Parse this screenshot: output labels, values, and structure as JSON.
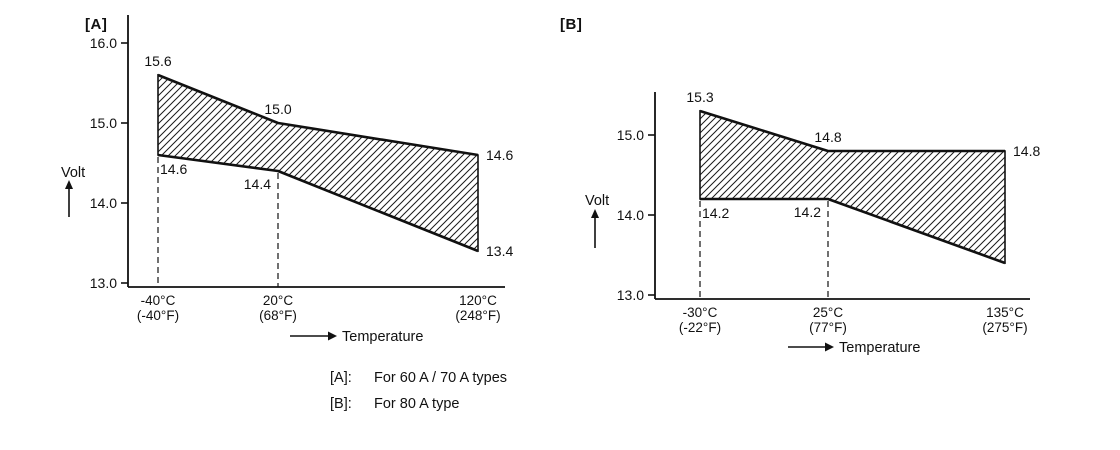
{
  "figure": {
    "legend": [
      {
        "key": "[A]:",
        "text": "For 60 A / 70 A types"
      },
      {
        "key": "[B]:",
        "text": "For 80 A type"
      }
    ]
  },
  "chart_data": [
    {
      "id": "A",
      "panel_label": "[A]",
      "type": "area",
      "ylabel": "Volt",
      "xlabel": "Temperature",
      "grid": false,
      "ylim": [
        13.0,
        16.0
      ],
      "y_ticks": [
        13.0,
        14.0,
        15.0,
        16.0
      ],
      "x_ticks": [
        {
          "c": "-40°C",
          "f": "(-40°F)"
        },
        {
          "c": "20°C",
          "f": "(68°F)"
        },
        {
          "c": "120°C",
          "f": "(248°F)"
        }
      ],
      "series": [
        {
          "name": "upper limit",
          "values": [
            15.6,
            15.0,
            14.6
          ]
        },
        {
          "name": "lower limit",
          "values": [
            14.6,
            14.4,
            13.4
          ]
        }
      ],
      "point_labels": {
        "upper": [
          {
            "text": "15.6",
            "pos": "above"
          },
          {
            "text": "15.0",
            "pos": "above"
          },
          {
            "text": "14.6",
            "pos": "right"
          }
        ],
        "lower": [
          {
            "text": "14.6",
            "pos": "below-right"
          },
          {
            "text": "14.4",
            "pos": "below-left"
          },
          {
            "text": "13.4",
            "pos": "right"
          }
        ]
      },
      "dashed_guides": [
        0,
        1
      ],
      "hatched": true
    },
    {
      "id": "B",
      "panel_label": "[B]",
      "type": "area",
      "ylabel": "Volt",
      "xlabel": "Temperature",
      "grid": false,
      "ylim": [
        13.0,
        15.0
      ],
      "y_ticks": [
        13.0,
        14.0,
        15.0
      ],
      "x_ticks": [
        {
          "c": "-30°C",
          "f": "(-22°F)"
        },
        {
          "c": "25°C",
          "f": "(77°F)"
        },
        {
          "c": "135°C",
          "f": "(275°F)"
        }
      ],
      "series": [
        {
          "name": "upper limit",
          "values": [
            15.3,
            14.8,
            14.8
          ]
        },
        {
          "name": "lower limit",
          "values": [
            14.2,
            14.2,
            13.4
          ]
        }
      ],
      "point_labels": {
        "upper": [
          {
            "text": "15.3",
            "pos": "above"
          },
          {
            "text": "14.8",
            "pos": "above"
          },
          {
            "text": "14.8",
            "pos": "right"
          }
        ],
        "lower": [
          {
            "text": "14.2",
            "pos": "below-right"
          },
          {
            "text": "14.2",
            "pos": "below-left"
          },
          null
        ]
      },
      "dashed_guides": [
        0,
        1
      ],
      "hatched": true
    }
  ]
}
